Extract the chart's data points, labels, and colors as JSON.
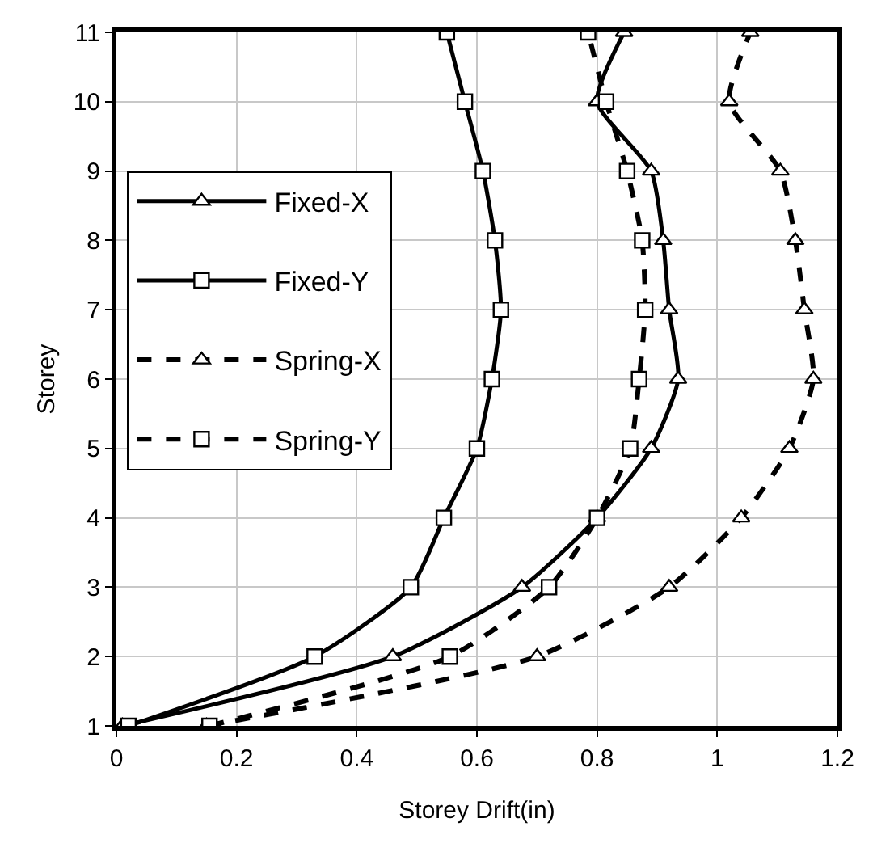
{
  "chart_data": {
    "type": "line",
    "xlabel": "Storey Drift(in)",
    "ylabel": "Storey",
    "xlim": [
      0,
      1.2
    ],
    "xticks": [
      0,
      0.2,
      0.4,
      0.6,
      0.8,
      1,
      1.2
    ],
    "ylim": [
      1,
      11
    ],
    "yticks": [
      1,
      2,
      3,
      4,
      5,
      6,
      7,
      8,
      9,
      10,
      11
    ],
    "grid": true,
    "legend": "left",
    "series": [
      {
        "name": "Fixed-X",
        "color": "#000000",
        "marker": "triangle",
        "line_style": "solid",
        "x": [
          0.01,
          0.46,
          0.675,
          0.8,
          0.89,
          0.935,
          0.92,
          0.91,
          0.89,
          0.8,
          0.845
        ],
        "values": [
          1,
          2,
          3,
          4,
          5,
          6,
          7,
          8,
          9,
          10,
          11
        ]
      },
      {
        "name": "Fixed-Y",
        "color": "#000000",
        "marker": "square",
        "line_style": "solid",
        "x": [
          0.02,
          0.33,
          0.49,
          0.545,
          0.6,
          0.625,
          0.64,
          0.63,
          0.61,
          0.58,
          0.55
        ],
        "values": [
          1,
          2,
          3,
          4,
          5,
          6,
          7,
          8,
          9,
          10,
          11
        ]
      },
      {
        "name": "Spring-X",
        "color": "#000000",
        "marker": "triangle",
        "line_style": "dashed",
        "x": [
          0.15,
          0.7,
          0.92,
          1.04,
          1.12,
          1.16,
          1.145,
          1.13,
          1.105,
          1.02,
          1.055
        ],
        "values": [
          1,
          2,
          3,
          4,
          5,
          6,
          7,
          8,
          9,
          10,
          11
        ]
      },
      {
        "name": "Spring-Y",
        "color": "#000000",
        "marker": "square",
        "line_style": "dashed",
        "x": [
          0.155,
          0.555,
          0.72,
          0.8,
          0.855,
          0.87,
          0.88,
          0.875,
          0.85,
          0.815,
          0.785
        ],
        "values": [
          1,
          2,
          3,
          4,
          5,
          6,
          7,
          8,
          9,
          10,
          11
        ]
      }
    ]
  }
}
